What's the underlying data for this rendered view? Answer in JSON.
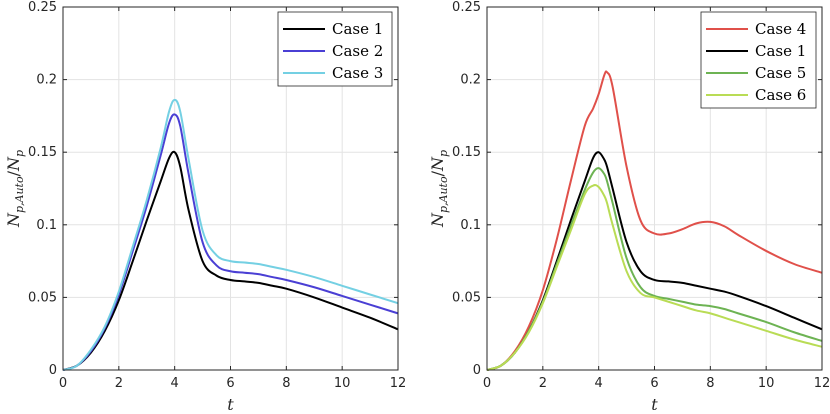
{
  "chart_data": [
    {
      "type": "line",
      "title": "",
      "xlabel": "t",
      "ylabel": "N_{p,Auto}/N_p",
      "ylabel_parts": {
        "main": "N",
        "sub1": "p,Auto",
        "slash": "/",
        "main2": "N",
        "sub2": "p"
      },
      "xlim": [
        0,
        12
      ],
      "ylim": [
        0,
        0.25
      ],
      "xticks": [
        0,
        2,
        4,
        6,
        8,
        10,
        12
      ],
      "xtick_labels": [
        "0",
        "2",
        "4",
        "6",
        "8",
        "10",
        "12"
      ],
      "yticks": [
        0,
        0.05,
        0.1,
        0.15,
        0.2,
        0.25
      ],
      "ytick_labels": [
        "0",
        "0.05",
        "0.1",
        "0.15",
        "0.2",
        "0.25"
      ],
      "grid": true,
      "legend_position": "top-right",
      "x": [
        0,
        0.5,
        1,
        1.5,
        2,
        2.5,
        3,
        3.5,
        3.8,
        4,
        4.2,
        4.5,
        5,
        5.5,
        6,
        6.5,
        7,
        7.5,
        8,
        9,
        10,
        11,
        12
      ],
      "series": [
        {
          "name": "Case 1",
          "color": "#000000",
          "values": [
            0,
            0.003,
            0.012,
            0.027,
            0.048,
            0.075,
            0.103,
            0.13,
            0.146,
            0.15,
            0.14,
            0.11,
            0.075,
            0.065,
            0.062,
            0.061,
            0.06,
            0.058,
            0.056,
            0.05,
            0.043,
            0.036,
            0.028
          ]
        },
        {
          "name": "Case 2",
          "color": "#4a3fd4",
          "values": [
            0,
            0.003,
            0.013,
            0.029,
            0.052,
            0.082,
            0.113,
            0.148,
            0.17,
            0.176,
            0.168,
            0.135,
            0.088,
            0.072,
            0.068,
            0.067,
            0.066,
            0.064,
            0.062,
            0.057,
            0.051,
            0.045,
            0.039
          ]
        },
        {
          "name": "Case 3",
          "color": "#74d0e3",
          "values": [
            0,
            0.003,
            0.014,
            0.03,
            0.054,
            0.085,
            0.117,
            0.153,
            0.178,
            0.186,
            0.178,
            0.145,
            0.096,
            0.079,
            0.075,
            0.074,
            0.073,
            0.071,
            0.069,
            0.064,
            0.058,
            0.052,
            0.046
          ]
        }
      ]
    },
    {
      "type": "line",
      "title": "",
      "xlabel": "t",
      "ylabel": "N_{p,Auto}/N_p",
      "ylabel_parts": {
        "main": "N",
        "sub1": "p,Auto",
        "slash": "/",
        "main2": "N",
        "sub2": "p"
      },
      "xlim": [
        0,
        12
      ],
      "ylim": [
        0,
        0.25
      ],
      "xticks": [
        0,
        2,
        4,
        6,
        8,
        10,
        12
      ],
      "xtick_labels": [
        "0",
        "2",
        "4",
        "6",
        "8",
        "10",
        "12"
      ],
      "yticks": [
        0,
        0.05,
        0.1,
        0.15,
        0.2,
        0.25
      ],
      "ytick_labels": [
        "0",
        "0.05",
        "0.1",
        "0.15",
        "0.2",
        "0.25"
      ],
      "grid": true,
      "legend_position": "top-right",
      "x": [
        0,
        0.5,
        1,
        1.5,
        2,
        2.5,
        3,
        3.5,
        3.8,
        4,
        4.2,
        4.3,
        4.5,
        5,
        5.5,
        6,
        6.5,
        7,
        7.5,
        8,
        8.5,
        9,
        10,
        11,
        12
      ],
      "series": [
        {
          "name": "Case 4",
          "color": "#e0504a",
          "values": [
            0,
            0.003,
            0.013,
            0.03,
            0.055,
            0.09,
            0.13,
            0.168,
            0.18,
            0.19,
            0.203,
            0.205,
            0.195,
            0.14,
            0.103,
            0.094,
            0.094,
            0.097,
            0.101,
            0.102,
            0.099,
            0.093,
            0.082,
            0.073,
            0.067
          ]
        },
        {
          "name": "Case 1",
          "color": "#000000",
          "values": [
            0,
            0.003,
            0.012,
            0.027,
            0.048,
            0.075,
            0.103,
            0.13,
            0.146,
            0.15,
            0.145,
            0.14,
            0.125,
            0.088,
            0.068,
            0.062,
            0.061,
            0.06,
            0.058,
            0.056,
            0.054,
            0.051,
            0.044,
            0.036,
            0.028
          ]
        },
        {
          "name": "Case 5",
          "color": "#6db353",
          "values": [
            0,
            0.003,
            0.012,
            0.027,
            0.047,
            0.073,
            0.099,
            0.124,
            0.136,
            0.139,
            0.135,
            0.13,
            0.115,
            0.077,
            0.057,
            0.051,
            0.049,
            0.047,
            0.045,
            0.044,
            0.042,
            0.039,
            0.033,
            0.026,
            0.02
          ]
        },
        {
          "name": "Case 6",
          "color": "#b9dc55",
          "values": [
            0,
            0.003,
            0.012,
            0.026,
            0.046,
            0.071,
            0.096,
            0.121,
            0.127,
            0.126,
            0.12,
            0.115,
            0.1,
            0.068,
            0.053,
            0.05,
            0.047,
            0.044,
            0.041,
            0.039,
            0.036,
            0.033,
            0.027,
            0.021,
            0.016
          ]
        }
      ]
    }
  ]
}
